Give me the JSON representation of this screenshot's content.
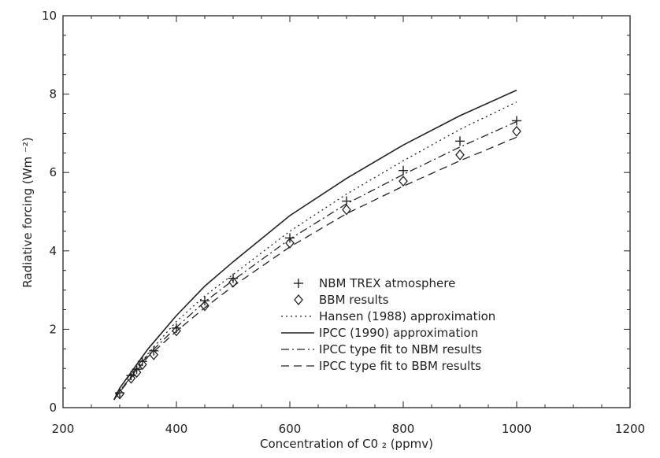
{
  "chart_data": {
    "type": "line",
    "title": "",
    "xlabel": "Concentration of C0 ₂ (ppmv)",
    "ylabel": "Radiative forcing (Wm ⁻²)",
    "xlim": [
      200,
      1200
    ],
    "ylim": [
      0,
      10
    ],
    "xticks": [
      200,
      400,
      600,
      800,
      1000,
      1200
    ],
    "yticks": [
      0,
      2,
      4,
      6,
      8,
      10
    ],
    "grid": false,
    "legend_position": "lower-right",
    "series": [
      {
        "name": "NBM TREX atmosphere",
        "style": "plus-marker",
        "x": [
          300,
          320,
          330,
          340,
          360,
          400,
          450,
          500,
          600,
          700,
          800,
          900,
          1000
        ],
        "y": [
          0.38,
          0.82,
          0.98,
          1.18,
          1.45,
          2.03,
          2.73,
          3.3,
          4.33,
          5.27,
          6.05,
          6.8,
          7.32
        ]
      },
      {
        "name": "BBM results",
        "style": "diamond-marker",
        "x": [
          300,
          320,
          330,
          340,
          360,
          400,
          450,
          500,
          600,
          700,
          800,
          900,
          1000
        ],
        "y": [
          0.35,
          0.75,
          0.9,
          1.1,
          1.35,
          1.96,
          2.6,
          3.2,
          4.2,
          5.05,
          5.78,
          6.45,
          7.05
        ]
      },
      {
        "name": "Hansen (1988) approximation",
        "style": "dotted",
        "x": [
          290,
          300,
          350,
          400,
          450,
          500,
          600,
          700,
          800,
          900,
          1000
        ],
        "y": [
          0.2,
          0.42,
          1.38,
          2.2,
          2.85,
          3.4,
          4.5,
          5.45,
          6.3,
          7.1,
          7.8
        ]
      },
      {
        "name": "IPCC (1990) approximation",
        "style": "solid",
        "x": [
          290,
          300,
          350,
          400,
          450,
          500,
          600,
          700,
          800,
          900,
          1000
        ],
        "y": [
          0.2,
          0.5,
          1.5,
          2.35,
          3.1,
          3.72,
          4.9,
          5.85,
          6.7,
          7.45,
          8.1
        ]
      },
      {
        "name": "IPCC type fit to NBM results",
        "style": "dash-dot",
        "x": [
          290,
          300,
          350,
          400,
          450,
          500,
          600,
          700,
          800,
          900,
          1000
        ],
        "y": [
          0.2,
          0.42,
          1.35,
          2.05,
          2.7,
          3.25,
          4.3,
          5.2,
          5.95,
          6.65,
          7.3
        ]
      },
      {
        "name": "IPCC type fit to BBM results",
        "style": "dashed",
        "x": [
          290,
          300,
          350,
          400,
          450,
          500,
          600,
          700,
          800,
          900,
          1000
        ],
        "y": [
          0.2,
          0.4,
          1.3,
          1.95,
          2.55,
          3.1,
          4.1,
          4.95,
          5.65,
          6.3,
          6.9
        ]
      }
    ]
  }
}
